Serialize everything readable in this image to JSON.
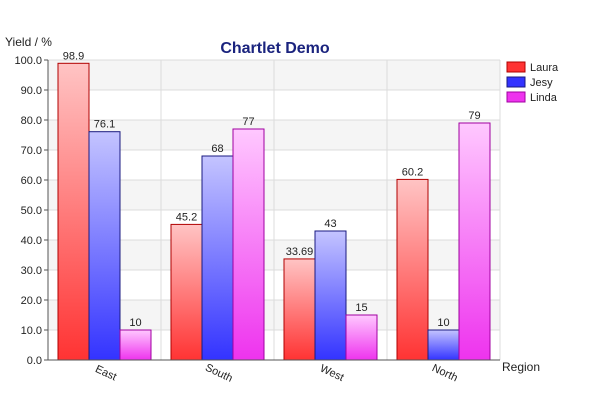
{
  "chart_data": {
    "type": "bar",
    "title": "Chartlet Demo",
    "ylabel": "Yield / %",
    "xlabel": "Region",
    "categories": [
      "East",
      "South",
      "West",
      "North"
    ],
    "series": [
      {
        "name": "Laura",
        "values": [
          98.9,
          45.2,
          33.69,
          60.2
        ],
        "labels": [
          "98.9",
          "45.2",
          "33.69",
          "60.2"
        ],
        "color_top": "#ffc4c4",
        "color_bottom": "#ff3333",
        "border": "#b00000"
      },
      {
        "name": "Jesy",
        "values": [
          76.1,
          68,
          43,
          10
        ],
        "labels": [
          "76.1",
          "68",
          "43",
          "10"
        ],
        "color_top": "#c4c4ff",
        "color_bottom": "#3333ff",
        "border": "#1a1a80"
      },
      {
        "name": "Linda",
        "values": [
          10,
          77,
          15,
          79
        ],
        "labels": [
          "10",
          "77",
          "15",
          "79"
        ],
        "color_top": "#ffc8ff",
        "color_bottom": "#ee33ee",
        "border": "#a000a0"
      }
    ],
    "ylim": [
      0,
      100
    ],
    "yticks": [
      "0.0",
      "10.0",
      "20.0",
      "30.0",
      "40.0",
      "50.0",
      "60.0",
      "70.0",
      "80.0",
      "90.0",
      "100.0"
    ],
    "grid": true,
    "legend_position": "top-right"
  }
}
